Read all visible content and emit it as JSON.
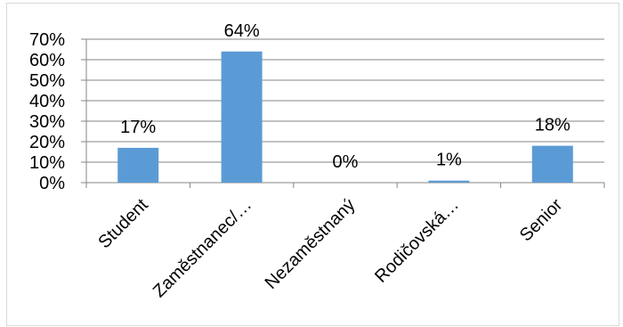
{
  "chart_data": {
    "type": "bar",
    "title": "",
    "xlabel": "",
    "ylabel": "",
    "categories": [
      "Student",
      "Zaměstnanec/…",
      "Nezaměstnaný",
      "Rodičovská…",
      "Senior"
    ],
    "values": [
      17,
      64,
      0,
      1,
      18
    ],
    "data_labels": [
      "17%",
      "64%",
      "0%",
      "1%",
      "18%"
    ],
    "y_ticks": [
      "0%",
      "10%",
      "20%",
      "30%",
      "40%",
      "50%",
      "60%",
      "70%"
    ],
    "ylim": [
      0,
      70
    ],
    "grid": true,
    "legend": "none",
    "bar_color": "#5B9BD5",
    "grid_color": "#868686"
  }
}
